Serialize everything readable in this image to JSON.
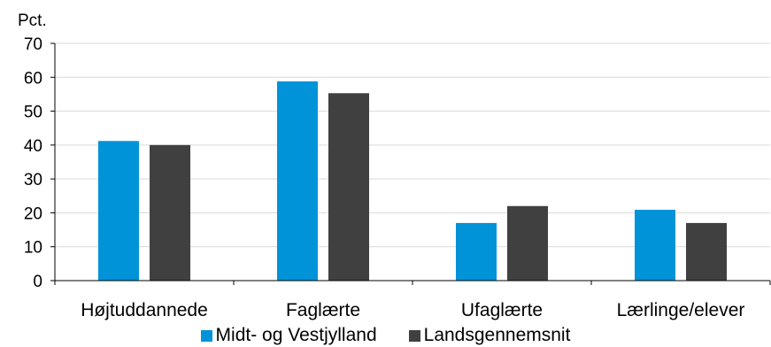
{
  "chart_data": {
    "type": "bar",
    "title": "",
    "ylabel": "Pct.",
    "xlabel": "",
    "ylim": [
      0,
      70
    ],
    "yticks": [
      0,
      10,
      20,
      30,
      40,
      50,
      60,
      70
    ],
    "grid": true,
    "legend_position": "bottom",
    "categories": [
      "Højtuddannede",
      "Faglærte",
      "Ufaglærte",
      "Lærlinge/elever"
    ],
    "series": [
      {
        "name": "Midt- og Vestjylland",
        "color": "#0093d8",
        "values": [
          41.2,
          58.8,
          17.0,
          20.9
        ]
      },
      {
        "name": "Landsgennemsnit",
        "color": "#404040",
        "values": [
          40.0,
          55.3,
          22.0,
          17.0
        ]
      }
    ]
  }
}
